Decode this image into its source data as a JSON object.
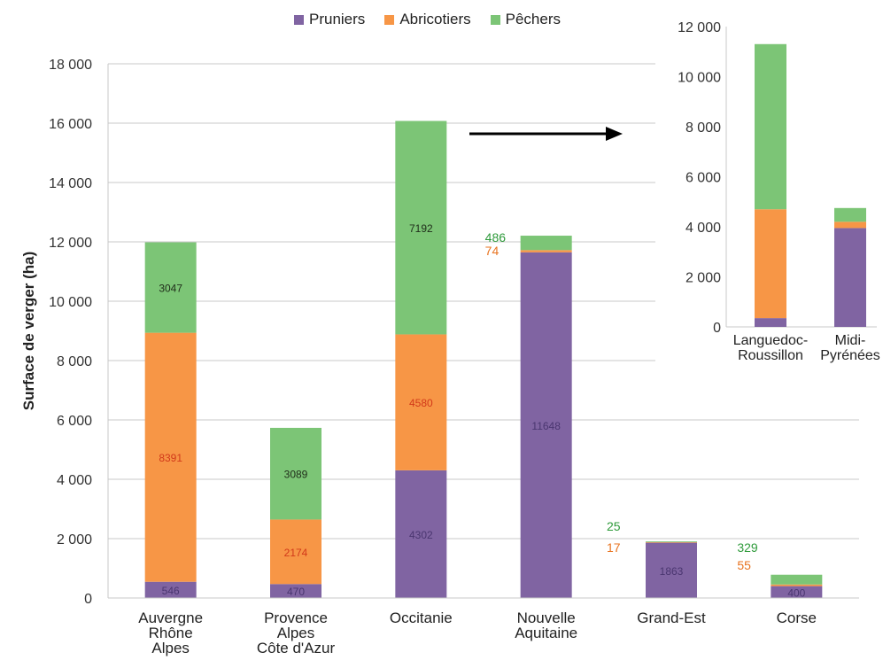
{
  "chart_data": [
    {
      "type": "bar",
      "stacked": true,
      "ylabel": "Surface de verger (ha)",
      "ylim": [
        0,
        18000
      ],
      "yticks": [
        "0",
        "2 000",
        "4 000",
        "6 000",
        "8 000",
        "10 000",
        "12 000",
        "14 000",
        "16 000",
        "18 000"
      ],
      "grid": true,
      "categories": [
        [
          "Auvergne",
          "Rhône",
          "Alpes"
        ],
        [
          "Provence",
          "Alpes",
          "Côte d'Azur"
        ],
        [
          "Occitanie"
        ],
        [
          "Nouvelle",
          "Aquitaine"
        ],
        [
          "Grand-Est"
        ],
        [
          "Corse"
        ]
      ],
      "series": [
        {
          "name": "Pruniers",
          "color": "#8064a2",
          "values": [
            546,
            470,
            4302,
            11648,
            1863,
            400
          ],
          "labels": [
            "546",
            "470",
            "4302",
            "11648",
            "1863",
            "400"
          ]
        },
        {
          "name": "Abricotiers",
          "color": "#f79646",
          "values": [
            8391,
            2174,
            4580,
            74,
            17,
            55
          ],
          "labels": [
            "8391",
            "2174",
            "4580",
            "74",
            "17",
            "55"
          ]
        },
        {
          "name": "Pêchers",
          "color": "#7cc576",
          "values": [
            3047,
            3089,
            7192,
            486,
            25,
            329
          ],
          "labels": [
            "3047",
            "3089",
            "7192",
            "486",
            "25",
            "329"
          ]
        }
      ]
    },
    {
      "type": "bar",
      "stacked": true,
      "ylim": [
        0,
        12000
      ],
      "yticks": [
        "0",
        "2 000",
        "4 000",
        "6 000",
        "8 000",
        "10 000",
        "12 000"
      ],
      "categories": [
        [
          "Languedoc-",
          "Roussillon"
        ],
        [
          "Midi-",
          "Pyrénées"
        ]
      ],
      "series": [
        {
          "name": "Pruniers",
          "color": "#8064a2",
          "values": [
            350,
            3950
          ]
        },
        {
          "name": "Abricotiers",
          "color": "#f79646",
          "values": [
            4350,
            250
          ]
        },
        {
          "name": "Pêchers",
          "color": "#7cc576",
          "values": [
            6600,
            550
          ]
        }
      ]
    }
  ]
}
